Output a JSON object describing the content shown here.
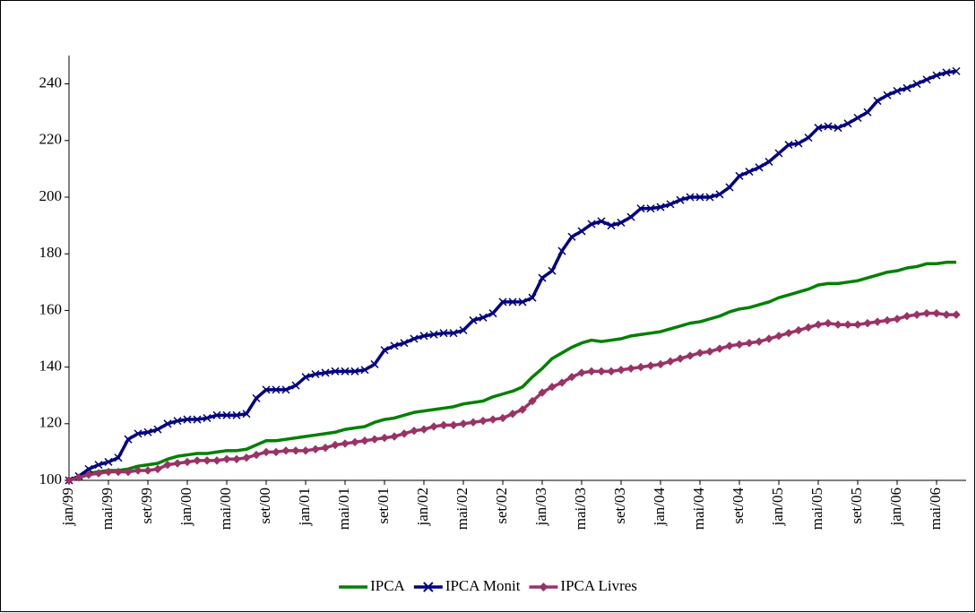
{
  "chart_data": {
    "type": "line",
    "categories": [
      "jan/99",
      null,
      null,
      null,
      "mai/99",
      null,
      null,
      null,
      "set/99",
      null,
      null,
      null,
      "jan/00",
      null,
      null,
      null,
      "mai/00",
      null,
      null,
      null,
      "set/00",
      null,
      null,
      null,
      "jan/01",
      null,
      null,
      null,
      "mai/01",
      null,
      null,
      null,
      "set/01",
      null,
      null,
      null,
      "jan/02",
      null,
      null,
      null,
      "mai/02",
      null,
      null,
      null,
      "set/02",
      null,
      null,
      null,
      "jan/03",
      null,
      null,
      null,
      "mai/03",
      null,
      null,
      null,
      "set/03",
      null,
      null,
      null,
      "jan/04",
      null,
      null,
      null,
      "mai/04",
      null,
      null,
      null,
      "set/04",
      null,
      null,
      null,
      "jan/05",
      null,
      null,
      null,
      "mai/05",
      null,
      null,
      null,
      "set/05",
      null,
      null,
      null,
      "jan/06",
      null,
      null,
      null,
      "mai/06",
      null,
      null
    ],
    "series": [
      {
        "name": "IPCA",
        "color": "#008000",
        "marker": "none",
        "values": [
          100,
          101,
          102.5,
          103,
          103.5,
          103.5,
          104,
          105,
          105.5,
          106,
          107.5,
          108.5,
          109,
          109.5,
          109.5,
          110,
          110.5,
          110.5,
          111,
          112.5,
          114,
          114,
          114.5,
          115,
          115.5,
          116,
          116.5,
          117,
          118,
          118.5,
          119,
          120.5,
          121.5,
          122,
          123,
          124,
          124.5,
          125,
          125.5,
          126,
          127,
          127.5,
          128,
          129.5,
          130.5,
          131.5,
          133,
          136.5,
          139.5,
          143,
          145,
          147,
          148.5,
          149.5,
          149,
          149.5,
          150,
          151,
          151.5,
          152,
          152.5,
          153.5,
          154.5,
          155.5,
          156,
          157,
          158,
          159.5,
          160.5,
          161,
          162,
          163,
          164.5,
          165.5,
          166.5,
          167.5,
          169,
          169.5,
          169.5,
          170,
          170.5,
          171.5,
          172.5,
          173.5,
          174,
          175,
          175.5,
          176.5,
          176.5,
          177,
          177
        ]
      },
      {
        "name": "IPCA Monit",
        "color": "#000080",
        "marker": "x",
        "values": [
          100,
          101.5,
          104,
          105.5,
          106.5,
          108,
          114.5,
          116.5,
          117,
          118,
          120,
          121,
          121.5,
          121.5,
          122,
          123,
          123,
          123,
          123.5,
          129,
          132,
          132,
          132,
          133.5,
          136.5,
          137.5,
          138,
          138.5,
          138.5,
          138.5,
          139,
          141,
          146,
          147.5,
          148.5,
          150,
          151,
          151.5,
          152,
          152,
          153,
          156.5,
          157.5,
          159,
          163,
          163,
          163,
          164.5,
          171.5,
          174,
          181,
          186,
          188,
          190.5,
          191.5,
          190,
          191,
          193,
          196,
          196,
          196.5,
          197.5,
          199,
          200,
          200,
          200,
          201,
          203.5,
          207.5,
          209,
          210.5,
          212.5,
          215.5,
          218.5,
          219,
          221,
          224.5,
          225,
          224.5,
          226,
          228,
          230,
          234,
          236,
          237.5,
          238.5,
          240,
          241.5,
          243,
          244,
          244.5
        ]
      },
      {
        "name": "IPCA Livres",
        "color": "#993366",
        "marker": "diamond",
        "values": [
          100,
          101,
          102,
          102.5,
          103,
          103,
          103,
          103.5,
          103.5,
          104,
          105.5,
          106,
          106.5,
          107,
          107,
          107,
          107.5,
          107.5,
          108,
          109,
          110,
          110,
          110.5,
          110.5,
          110.5,
          111,
          111.5,
          112.5,
          113,
          113.5,
          114,
          114.5,
          115,
          115.5,
          116.5,
          117.5,
          118,
          119,
          119.5,
          119.5,
          120,
          120.5,
          121,
          121.5,
          122,
          123.5,
          125,
          128,
          131,
          133,
          134.5,
          136.5,
          138,
          138.5,
          138.5,
          138.5,
          139,
          139.5,
          140,
          140.5,
          141,
          142,
          143,
          144,
          145,
          145.5,
          146.5,
          147.5,
          148,
          148.5,
          149,
          150,
          151,
          152,
          153,
          154,
          155,
          155.5,
          155,
          155,
          155,
          155.5,
          156,
          156.5,
          157,
          158,
          158.5,
          159,
          159,
          158.5,
          158.5
        ]
      }
    ],
    "ylim": [
      100,
      250
    ],
    "yticks": [
      100,
      120,
      140,
      160,
      180,
      200,
      220,
      240
    ],
    "legend": "bottom",
    "grid": false
  }
}
